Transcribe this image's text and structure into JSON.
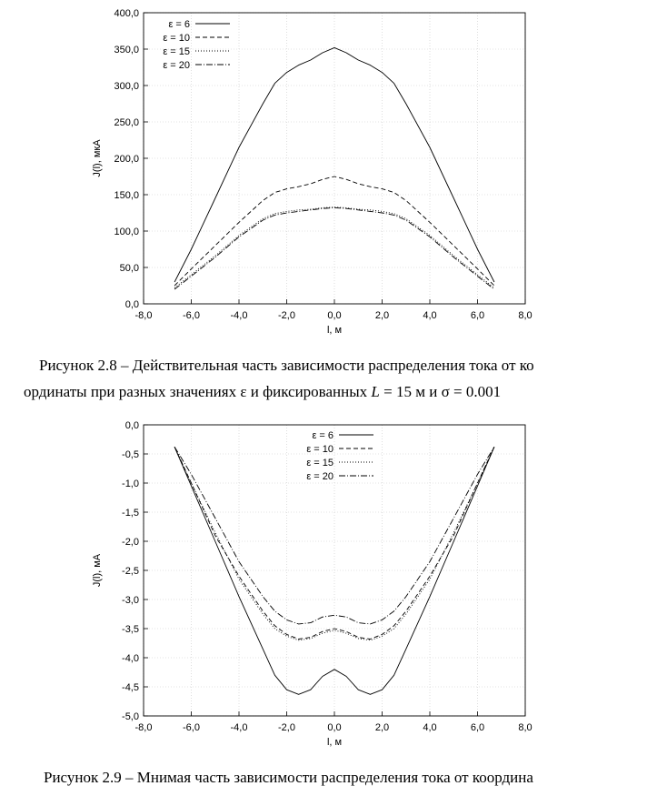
{
  "chart_data": [
    {
      "type": "line",
      "xlabel": "l, м",
      "ylabel": "J(l), мкА",
      "xlim": [
        -8,
        8
      ],
      "ylim": [
        0,
        400
      ],
      "x_ticks": [
        "-8,0",
        "-6,0",
        "-4,0",
        "-2,0",
        "0,0",
        "2,0",
        "4,0",
        "6,0",
        "8,0"
      ],
      "y_ticks": [
        "0,0",
        "50,0",
        "100,0",
        "150,0",
        "200,0",
        "250,0",
        "300,0",
        "350,0",
        "400,0"
      ],
      "grid": true,
      "legend_position": "top-left",
      "series": [
        {
          "name": "ε = 6",
          "dash": "",
          "x": [
            -6.7,
            -6,
            -5,
            -4,
            -3,
            -2.5,
            -2,
            -1.5,
            -1,
            -0.5,
            0,
            0.5,
            1,
            1.5,
            2,
            2.5,
            3,
            4,
            5,
            6,
            6.7
          ],
          "y": [
            30,
            75,
            145,
            215,
            275,
            303,
            318,
            328,
            335,
            345,
            352,
            345,
            335,
            328,
            318,
            303,
            275,
            215,
            145,
            75,
            30
          ]
        },
        {
          "name": "ε = 10",
          "dash": "5,3",
          "x": [
            -6.7,
            -6,
            -5,
            -4,
            -3,
            -2.5,
            -2,
            -1.5,
            -1,
            -0.5,
            0,
            0.5,
            1,
            1.5,
            2,
            2.5,
            3,
            4,
            5,
            6,
            6.7
          ],
          "y": [
            25,
            48,
            80,
            112,
            142,
            153,
            158,
            161,
            165,
            171,
            175,
            171,
            165,
            161,
            158,
            153,
            142,
            112,
            80,
            48,
            25
          ]
        },
        {
          "name": "ε = 15",
          "dash": "1,2",
          "x": [
            -6.7,
            -6,
            -5,
            -4,
            -3,
            -2.5,
            -2,
            -1.5,
            -1,
            -0.5,
            0,
            0.5,
            1,
            1.5,
            2,
            2.5,
            3,
            4,
            5,
            6,
            6.7
          ],
          "y": [
            22,
            40,
            66,
            94,
            117,
            124,
            127,
            129,
            130,
            132,
            133,
            132,
            130,
            129,
            127,
            124,
            117,
            94,
            66,
            40,
            22
          ]
        },
        {
          "name": "ε = 20",
          "dash": "7,2,1,2",
          "x": [
            -6.7,
            -6,
            -5,
            -4,
            -3,
            -2.5,
            -2,
            -1.5,
            -1,
            -0.5,
            0,
            0.5,
            1,
            1.5,
            2,
            2.5,
            3,
            4,
            5,
            6,
            6.7
          ],
          "y": [
            20,
            38,
            64,
            92,
            115,
            122,
            125,
            127,
            129,
            131,
            132,
            131,
            129,
            127,
            125,
            122,
            115,
            92,
            64,
            38,
            20
          ]
        }
      ]
    },
    {
      "type": "line",
      "xlabel": "l, м",
      "ylabel": "J(l), мА",
      "xlim": [
        -8,
        8
      ],
      "ylim": [
        -5,
        0
      ],
      "x_ticks": [
        "-8,0",
        "-6,0",
        "-4,0",
        "-2,0",
        "0,0",
        "2,0",
        "4,0",
        "6,0",
        "8,0"
      ],
      "y_ticks": [
        "0,0",
        "-0,5",
        "-1,0",
        "-1,5",
        "-2,0",
        "-2,5",
        "-3,0",
        "-3,5",
        "-4,0",
        "-4,5",
        "-5,0"
      ],
      "grid": true,
      "legend_position": "top-center",
      "series": [
        {
          "name": "ε = 6",
          "dash": "",
          "x": [
            -6.7,
            -6,
            -5,
            -4,
            -3,
            -2.5,
            -2,
            -1.5,
            -1,
            -0.5,
            0,
            0.5,
            1,
            1.5,
            2,
            2.5,
            3,
            4,
            5,
            6,
            6.7
          ],
          "y": [
            -0.38,
            -1.05,
            -2.0,
            -2.95,
            -3.85,
            -4.3,
            -4.55,
            -4.63,
            -4.55,
            -4.32,
            -4.2,
            -4.32,
            -4.55,
            -4.63,
            -4.55,
            -4.3,
            -3.85,
            -2.95,
            -2.0,
            -1.05,
            -0.38
          ]
        },
        {
          "name": "ε = 10",
          "dash": "5,3",
          "x": [
            -6.7,
            -6,
            -5,
            -4,
            -3,
            -2.5,
            -2,
            -1.5,
            -1,
            -0.5,
            0,
            0.5,
            1,
            1.5,
            2,
            2.5,
            3,
            4,
            5,
            6,
            6.7
          ],
          "y": [
            -0.38,
            -1.0,
            -1.9,
            -2.6,
            -3.2,
            -3.45,
            -3.6,
            -3.68,
            -3.65,
            -3.55,
            -3.5,
            -3.55,
            -3.65,
            -3.68,
            -3.6,
            -3.45,
            -3.2,
            -2.6,
            -1.9,
            -1.0,
            -0.38
          ]
        },
        {
          "name": "ε = 15",
          "dash": "1,2",
          "x": [
            -6.7,
            -6,
            -5,
            -4,
            -3,
            -2.5,
            -2,
            -1.5,
            -1,
            -0.5,
            0,
            0.5,
            1,
            1.5,
            2,
            2.5,
            3,
            4,
            5,
            6,
            6.7
          ],
          "y": [
            -0.38,
            -1.0,
            -1.85,
            -2.65,
            -3.25,
            -3.5,
            -3.63,
            -3.7,
            -3.67,
            -3.58,
            -3.53,
            -3.58,
            -3.67,
            -3.7,
            -3.63,
            -3.5,
            -3.25,
            -2.65,
            -1.85,
            -1.0,
            -0.38
          ]
        },
        {
          "name": "ε = 20",
          "dash": "7,2,1,2",
          "x": [
            -6.7,
            -6,
            -5,
            -4,
            -3,
            -2.5,
            -2,
            -1.5,
            -1,
            -0.5,
            0,
            0.5,
            1,
            1.5,
            2,
            2.5,
            3,
            4,
            5,
            6,
            6.7
          ],
          "y": [
            -0.38,
            -0.85,
            -1.6,
            -2.35,
            -2.95,
            -3.2,
            -3.35,
            -3.42,
            -3.4,
            -3.3,
            -3.27,
            -3.3,
            -3.4,
            -3.42,
            -3.35,
            -3.2,
            -2.95,
            -2.35,
            -1.6,
            -0.85,
            -0.38
          ]
        }
      ]
    }
  ],
  "captions": {
    "fig8_line1": "Рисунок 2.8 – Действительная часть зависимости распределения тока от ко",
    "fig8_line2_a": "ординаты при разных значениях ",
    "fig8_eps": "ε",
    "fig8_line2_b": " и фиксированных ",
    "fig8_L": "L",
    "fig8_line2_c": " = 15 м и ",
    "fig8_sigma": "σ",
    "fig8_line2_d": " = 0.001",
    "fig9_line1": "Рисунок 2.9 – Мнимая часть зависимости распределения тока от координа"
  }
}
